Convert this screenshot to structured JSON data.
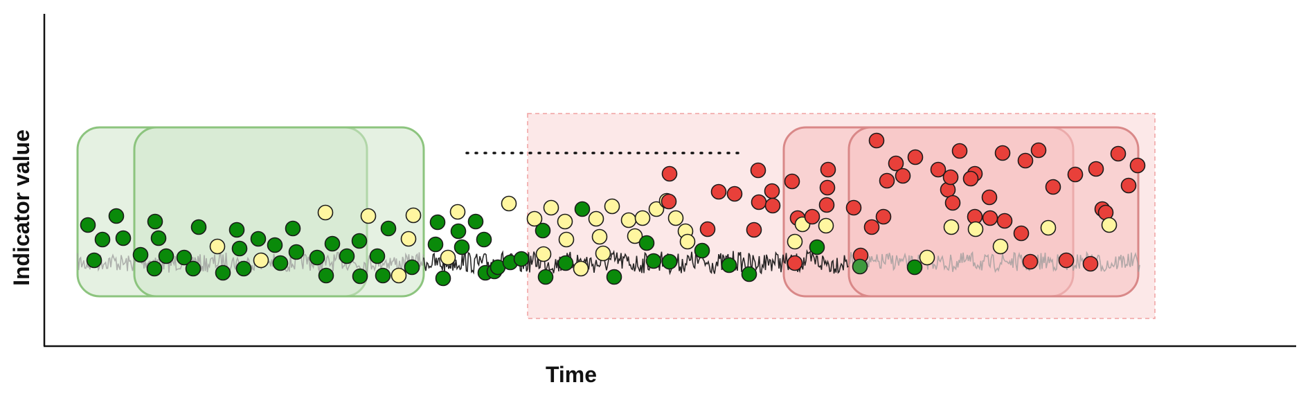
{
  "axes": {
    "ylabel": "Indicator value",
    "xlabel": "Time"
  },
  "colors": {
    "axis": "#111111",
    "green_region_fill": "#cfe6cb",
    "green_region_stroke": "#8cc47e",
    "red_region_fill": "#f6c3c3",
    "red_region_stroke": "#d98888",
    "red_zone_fill": "#fce8e8",
    "red_zone_stroke": "#f0a0a0",
    "dot_green_dark": "#0a8a0a",
    "dot_green_mid": "#3e9a3e",
    "dot_yellow": "#fff6a0",
    "dot_red": "#e8403a",
    "signal_dark": "#1a1a1a",
    "signal_faded": "#9a9a9a",
    "dotted_line": "#111111"
  }
}
